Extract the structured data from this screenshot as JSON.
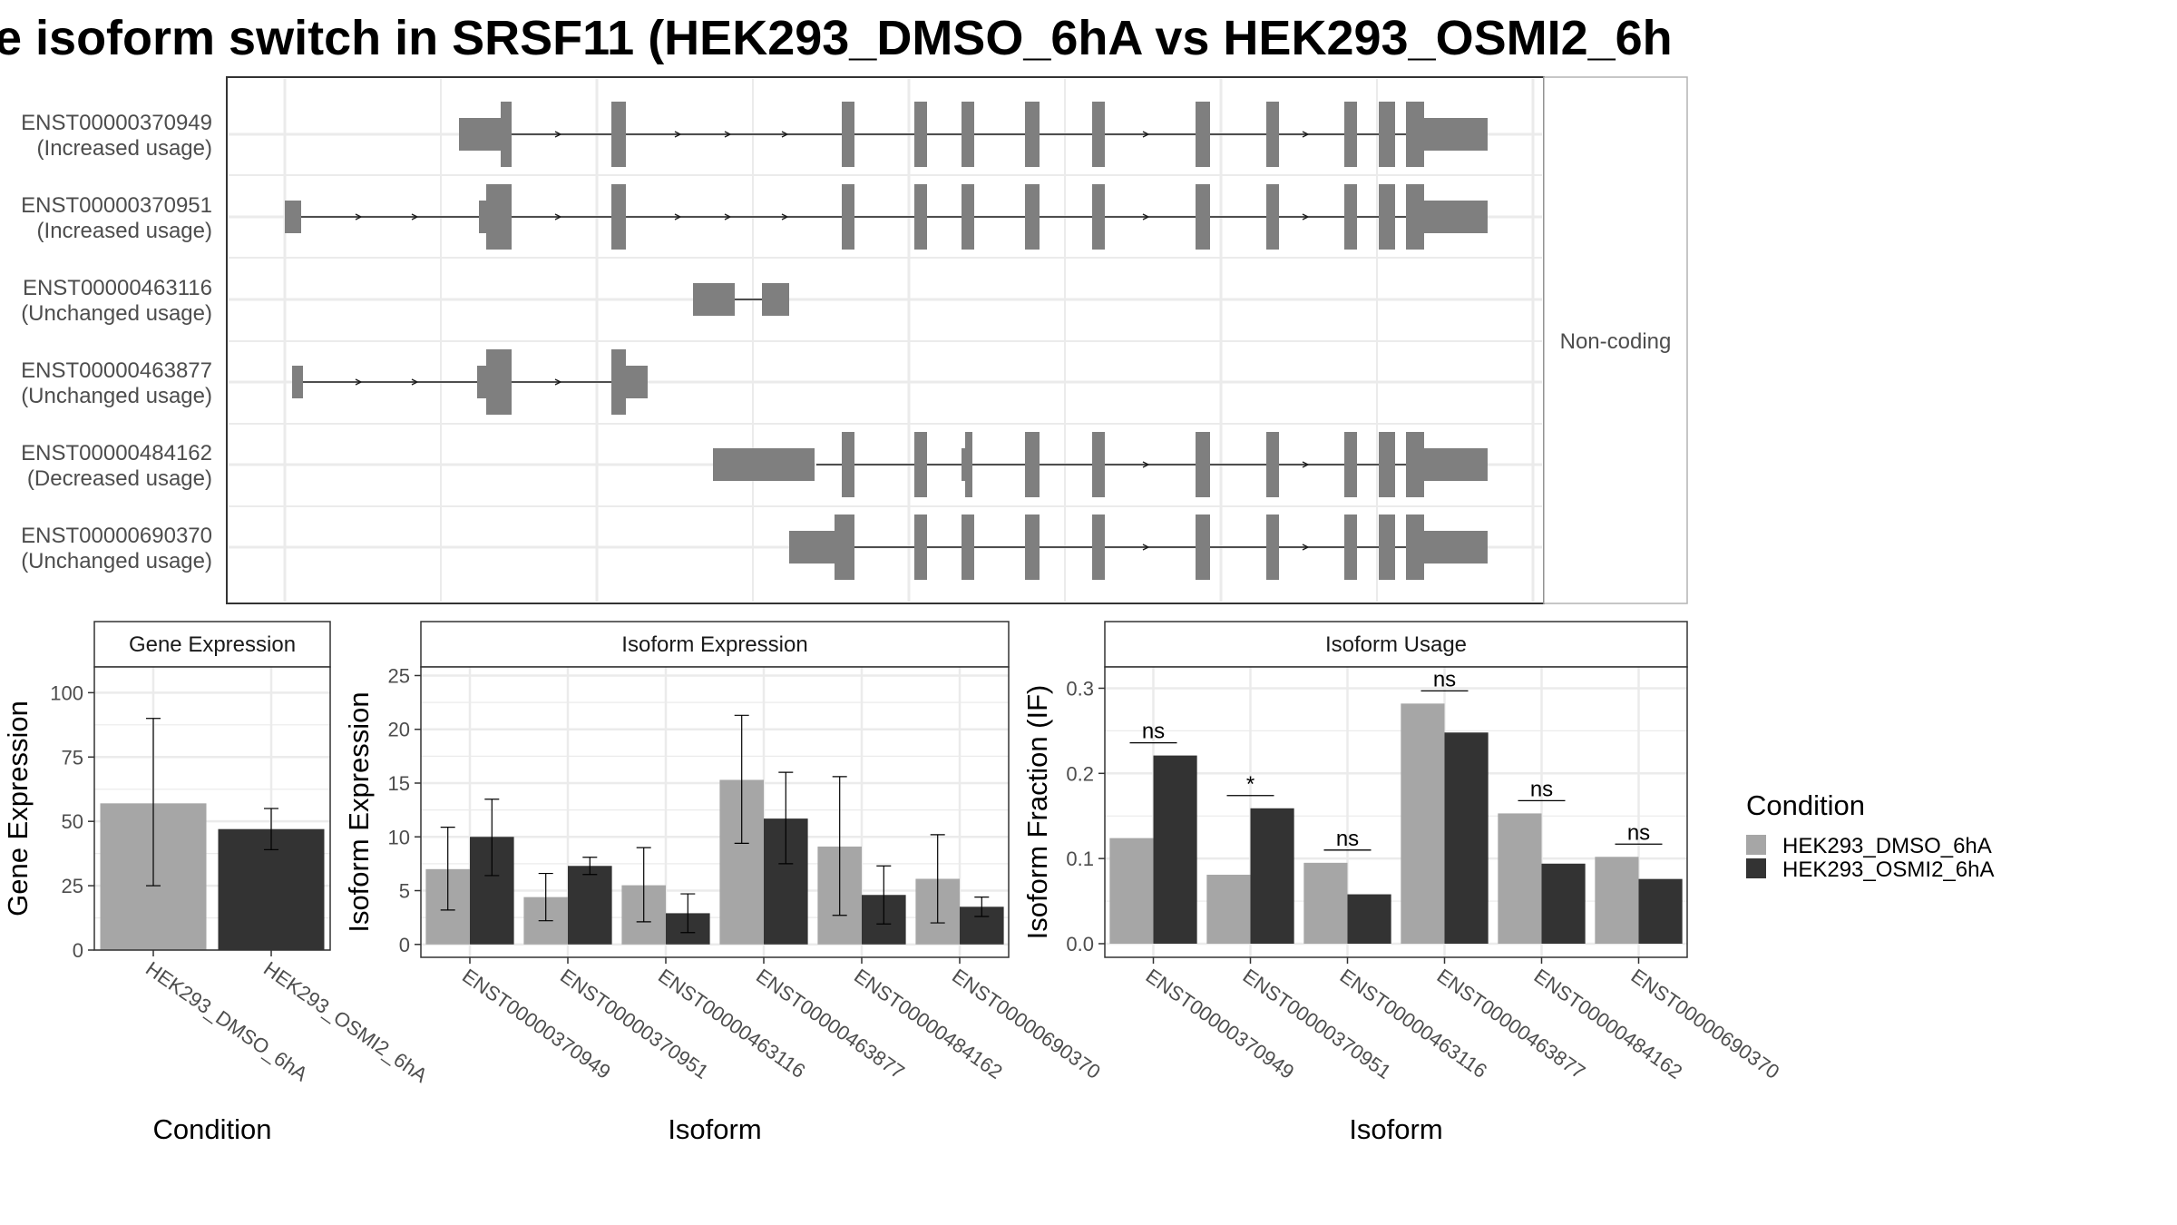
{
  "title": "e isoform switch in SRSF11 (HEK293_DMSO_6hA vs HEK293_OSMI2_6h",
  "colors": {
    "dmso": "#a6a6a6",
    "osmi": "#333333",
    "exon": "#7f7f7f",
    "grid": "#ebebeb",
    "panel_border": "#333333"
  },
  "structure_panel": {
    "strip_label": "Non-coding",
    "isoforms": [
      {
        "id": "ENST00000370949",
        "usage": "(Increased usage)"
      },
      {
        "id": "ENST00000370951",
        "usage": "(Increased usage)"
      },
      {
        "id": "ENST00000463116",
        "usage": "(Unchanged usage)"
      },
      {
        "id": "ENST00000463877",
        "usage": "(Unchanged usage)"
      },
      {
        "id": "ENST00000484162",
        "usage": "(Decreased usage)"
      },
      {
        "id": "ENST00000690370",
        "usage": "(Unchanged usage)"
      }
    ]
  },
  "legend": {
    "title": "Condition",
    "entries": [
      "HEK293_DMSO_6hA",
      "HEK293_OSMI2_6hA"
    ]
  },
  "chart_data": [
    {
      "type": "bar",
      "title": "Gene Expression",
      "xlabel": "Condition",
      "ylabel": "Gene Expression",
      "categories": [
        "HEK293_DMSO_6hA",
        "HEK293_OSMI2_6hA"
      ],
      "values": [
        57,
        47
      ],
      "error_low": [
        25,
        39
      ],
      "error_high": [
        90,
        55
      ],
      "ylim": [
        0,
        110
      ],
      "yticks": [
        0,
        25,
        50,
        75,
        100
      ]
    },
    {
      "type": "bar",
      "title": "Isoform Expression",
      "xlabel": "Isoform",
      "ylabel": "Isoform Expression",
      "categories": [
        "ENST00000370949",
        "ENST00000370951",
        "ENST00000463116",
        "ENST00000463877",
        "ENST00000484162",
        "ENST00000690370"
      ],
      "series": [
        {
          "name": "HEK293_DMSO_6hA",
          "values": [
            7.0,
            4.4,
            5.5,
            15.3,
            9.1,
            6.1
          ],
          "error_low": [
            3.2,
            2.2,
            2.1,
            9.4,
            2.7,
            2.0
          ],
          "error_high": [
            10.9,
            6.6,
            9.0,
            21.3,
            15.6,
            10.2
          ]
        },
        {
          "name": "HEK293_OSMI2_6hA",
          "values": [
            10.0,
            7.3,
            2.9,
            11.7,
            4.6,
            3.5
          ],
          "error_low": [
            6.4,
            6.5,
            1.1,
            7.5,
            1.9,
            2.6
          ],
          "error_high": [
            13.5,
            8.1,
            4.7,
            16.0,
            7.3,
            4.4
          ]
        }
      ],
      "ylim": [
        -1.2,
        25.8
      ],
      "yticks": [
        0,
        5,
        10,
        15,
        20,
        25
      ]
    },
    {
      "type": "bar",
      "title": "Isoform Usage",
      "xlabel": "Isoform",
      "ylabel": "Isoform Fraction (IF)",
      "categories": [
        "ENST00000370949",
        "ENST00000370951",
        "ENST00000463116",
        "ENST00000463877",
        "ENST00000484162",
        "ENST00000690370"
      ],
      "series": [
        {
          "name": "HEK293_DMSO_6hA",
          "values": [
            0.124,
            0.081,
            0.095,
            0.282,
            0.153,
            0.102
          ]
        },
        {
          "name": "HEK293_OSMI2_6hA",
          "values": [
            0.221,
            0.159,
            0.058,
            0.248,
            0.094,
            0.076
          ]
        }
      ],
      "significance": [
        "ns",
        "*",
        "ns",
        "ns",
        "ns",
        "ns"
      ],
      "ylim": [
        -0.016,
        0.325
      ],
      "yticks": [
        "0.0",
        "0.1",
        "0.2",
        "0.3"
      ]
    }
  ]
}
